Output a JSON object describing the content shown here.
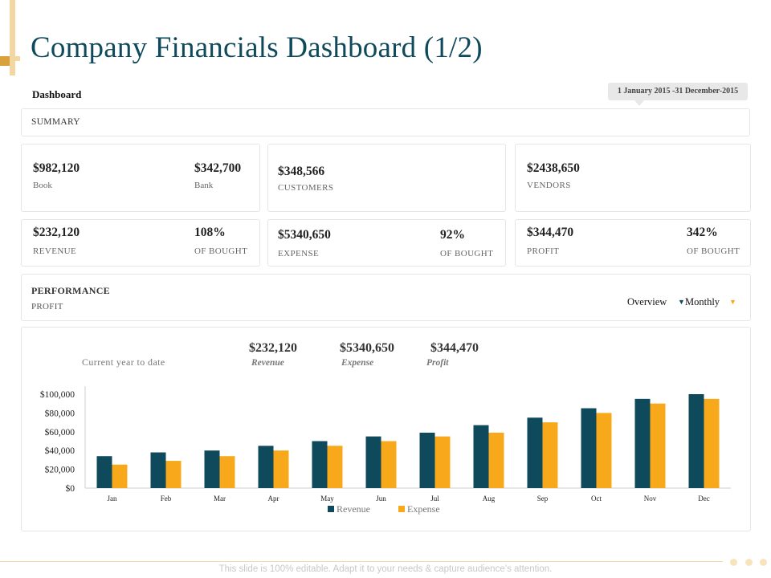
{
  "header": {
    "title": "Company Financials Dashboard (1/2)",
    "dashboard_label": "Dashboard",
    "date_range": "1 January 2015 -31 December-2015"
  },
  "summary": {
    "label": "SUMMARY"
  },
  "cards": {
    "book": {
      "value": "$982,120",
      "label": "Book"
    },
    "bank": {
      "value": "$342,700",
      "label": "Bank"
    },
    "customers": {
      "value": "$348,566",
      "label": "CUSTOMERS"
    },
    "vendors": {
      "value": "$2438,650",
      "label": "VENDORS"
    },
    "revenue": {
      "value": "$232,120",
      "label": "REVENUE",
      "pct": "108%",
      "pct_label": "OF BOUGHT"
    },
    "expense": {
      "value": "$5340,650",
      "label": "EXPENSE",
      "pct": "92%",
      "pct_label": "OF BOUGHT"
    },
    "profit": {
      "value": "$344,470",
      "label": "PROFIT",
      "pct": "342%",
      "pct_label": "OF BOUGHT"
    }
  },
  "performance": {
    "title": "PERFORMANCE",
    "subtitle": "PROFIT",
    "overview_label": "Overview",
    "monthly_label": "Monthly"
  },
  "chart_header": {
    "current_year_label": "Current year to date",
    "revenue_value": "$232,120",
    "revenue_label": "Revenue",
    "expense_value": "$5340,650",
    "expense_label": "Expense",
    "profit_value": "$344,470",
    "profit_label": "Profit"
  },
  "chart_data": {
    "type": "bar",
    "title": "",
    "xlabel": "",
    "ylabel": "",
    "categories": [
      "Jan",
      "Feb",
      "Mar",
      "Apr",
      "May",
      "Jun",
      "Jul",
      "Aug",
      "Sep",
      "Oct",
      "Nov",
      "Dec"
    ],
    "series": [
      {
        "name": "Revenue",
        "color": "#0e4a5b",
        "values": [
          34000,
          38000,
          40000,
          45000,
          50000,
          55000,
          59000,
          67000,
          75000,
          85000,
          95000,
          100000
        ]
      },
      {
        "name": "Expense",
        "color": "#f7a81b",
        "values": [
          25000,
          29000,
          34000,
          40000,
          45000,
          50000,
          55000,
          59000,
          70000,
          80000,
          90000,
          95000
        ]
      }
    ],
    "ylim": [
      0,
      100000
    ],
    "yticks": [
      "$0",
      "$20,000",
      "$40,000",
      "$60,000",
      "$80,000",
      "$100,000"
    ],
    "ytick_values": [
      0,
      20000,
      40000,
      60000,
      80000,
      100000
    ],
    "legend_position": "bottom"
  },
  "colors": {
    "brand_dark": "#0e4a5b",
    "accent": "#f7a81b"
  },
  "footer": {
    "text": "This slide is 100% editable. Adapt it to your needs & capture audience’s attention."
  }
}
